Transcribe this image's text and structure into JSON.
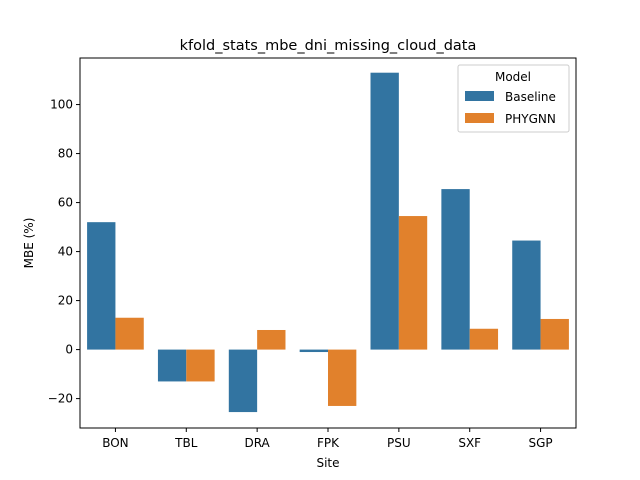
{
  "chart_data": {
    "type": "bar",
    "title": "kfold_stats_mbe_dni_missing_cloud_data",
    "xlabel": "Site",
    "ylabel": "MBE (%)",
    "categories": [
      "BON",
      "TBL",
      "DRA",
      "FPK",
      "PSU",
      "SXF",
      "SGP"
    ],
    "series": [
      {
        "name": "Baseline",
        "color": "#3274a1",
        "values": [
          52.0,
          -13.0,
          -25.5,
          -1.0,
          113.0,
          65.5,
          44.5
        ]
      },
      {
        "name": "PHYGNN",
        "color": "#e1812c",
        "values": [
          13.0,
          -13.0,
          8.0,
          -23.0,
          54.5,
          8.5,
          12.5
        ]
      }
    ],
    "ylim": [
      -32,
      119
    ],
    "yticks": [
      -20,
      0,
      20,
      40,
      60,
      80,
      100
    ],
    "ytick_labels": [
      "−20",
      "0",
      "20",
      "40",
      "60",
      "80",
      "100"
    ],
    "legend": {
      "title": "Model",
      "placement": "top-right"
    },
    "grid": false
  }
}
